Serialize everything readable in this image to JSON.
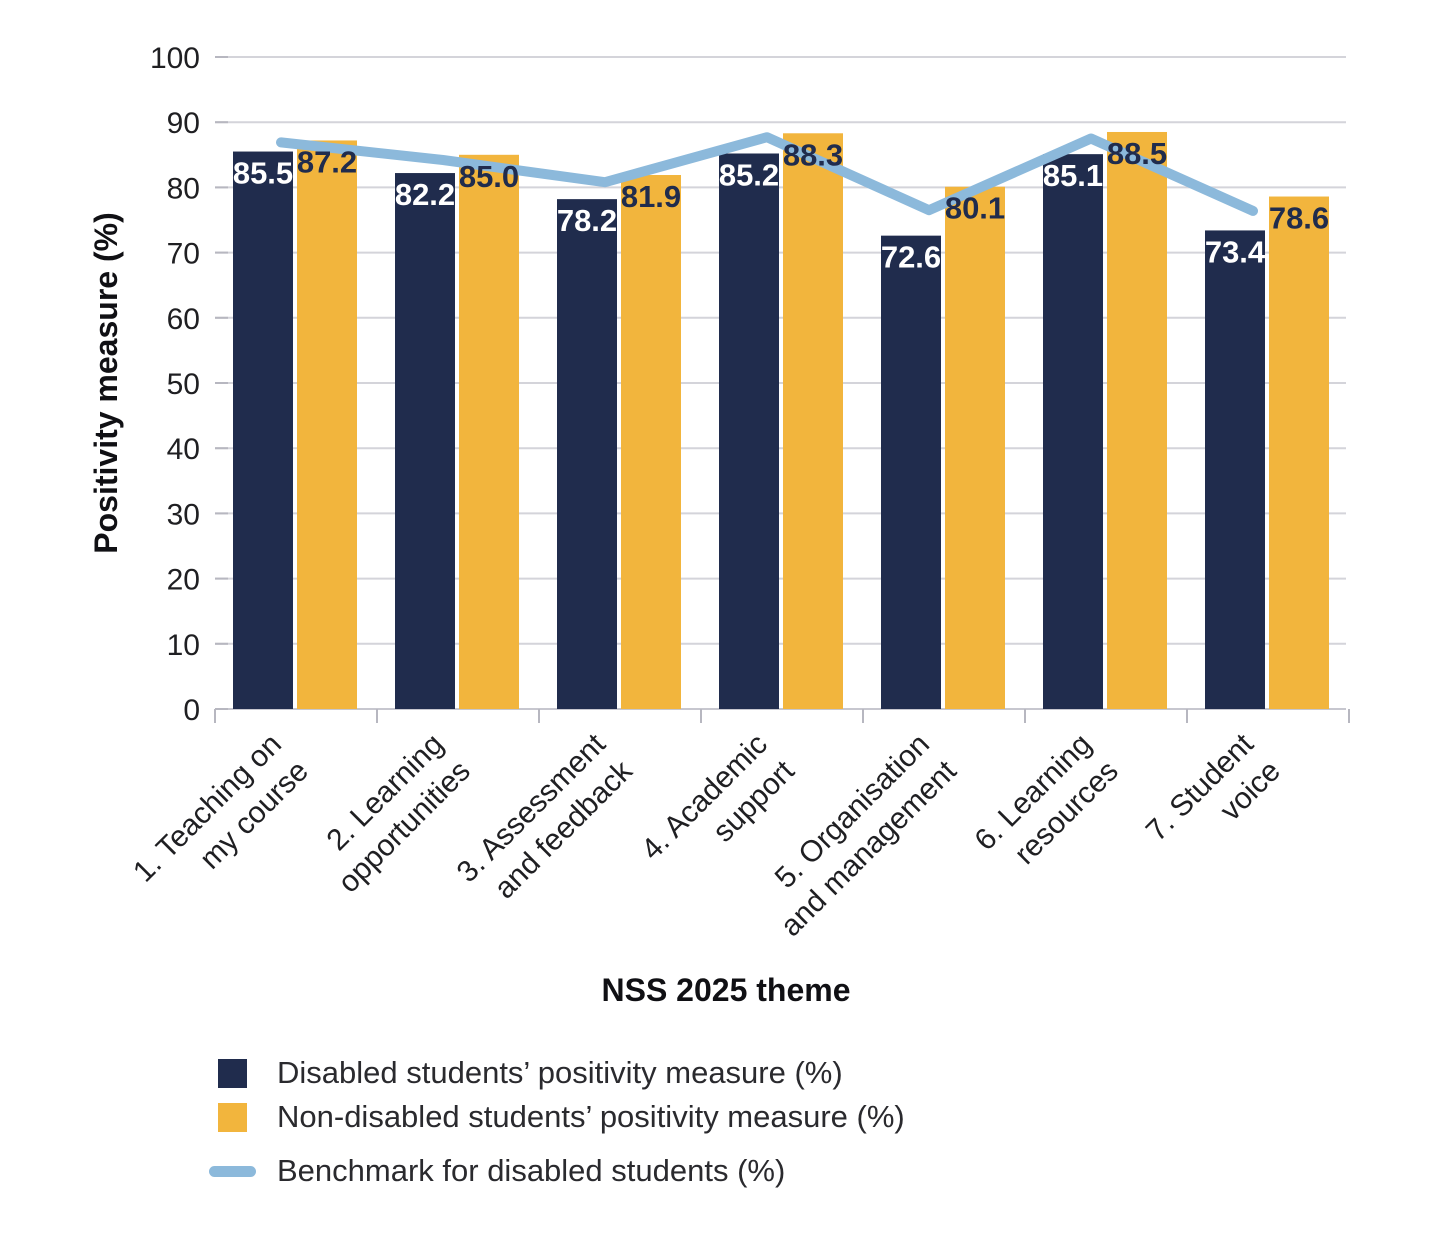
{
  "chart_data": {
    "type": "bar",
    "title": "",
    "xlabel": "NSS 2025 theme",
    "ylabel": "Positivity measure (%)",
    "ylim": [
      0,
      100
    ],
    "ytick_step": 10,
    "yticks": [
      0,
      10,
      20,
      30,
      40,
      50,
      60,
      70,
      80,
      90,
      100
    ],
    "grid": true,
    "legend_position": "bottom-left",
    "categories": [
      "1. Teaching on my course",
      "2. Learning opportunities",
      "3. Assessment and feedback",
      "4. Academic support",
      "5. Organisation and management",
      "6. Learning resources",
      "7. Student voice"
    ],
    "category_label_lines": [
      [
        "1. Teaching on",
        "my course"
      ],
      [
        "2. Learning",
        "opportunities"
      ],
      [
        "3. Assessment",
        "and feedback"
      ],
      [
        "4. Academic",
        "support"
      ],
      [
        "5. Organisation",
        "and management"
      ],
      [
        "6. Learning",
        "resources"
      ],
      [
        "7. Student",
        "voice"
      ]
    ],
    "series": [
      {
        "name": "Disabled students’ positivity measure (%)",
        "type": "bar",
        "color": "#202c4d",
        "label_color": "#ffffff",
        "values": [
          85.5,
          82.2,
          78.2,
          85.2,
          72.6,
          85.1,
          73.4
        ]
      },
      {
        "name": "Non-disabled students’ positivity measure (%)",
        "type": "bar",
        "color": "#f2b53d",
        "label_color": "#202c4d",
        "values": [
          87.2,
          85.0,
          81.9,
          88.3,
          80.1,
          88.5,
          78.6
        ]
      },
      {
        "name": "Benchmark for disabled students (%)",
        "type": "line",
        "color": "#8cb9db",
        "values": [
          86.9,
          84.2,
          80.8,
          87.7,
          76.5,
          87.5,
          76.4
        ]
      }
    ]
  },
  "colors": {
    "background": "#ffffff",
    "gridline": "#d4d4da",
    "axis_line": "#c7c7cf",
    "tick": "#b7b7c0",
    "tick_text": "#1f1f22",
    "axis_title_text": "#101014",
    "legend_text": "#2a2a2e"
  }
}
